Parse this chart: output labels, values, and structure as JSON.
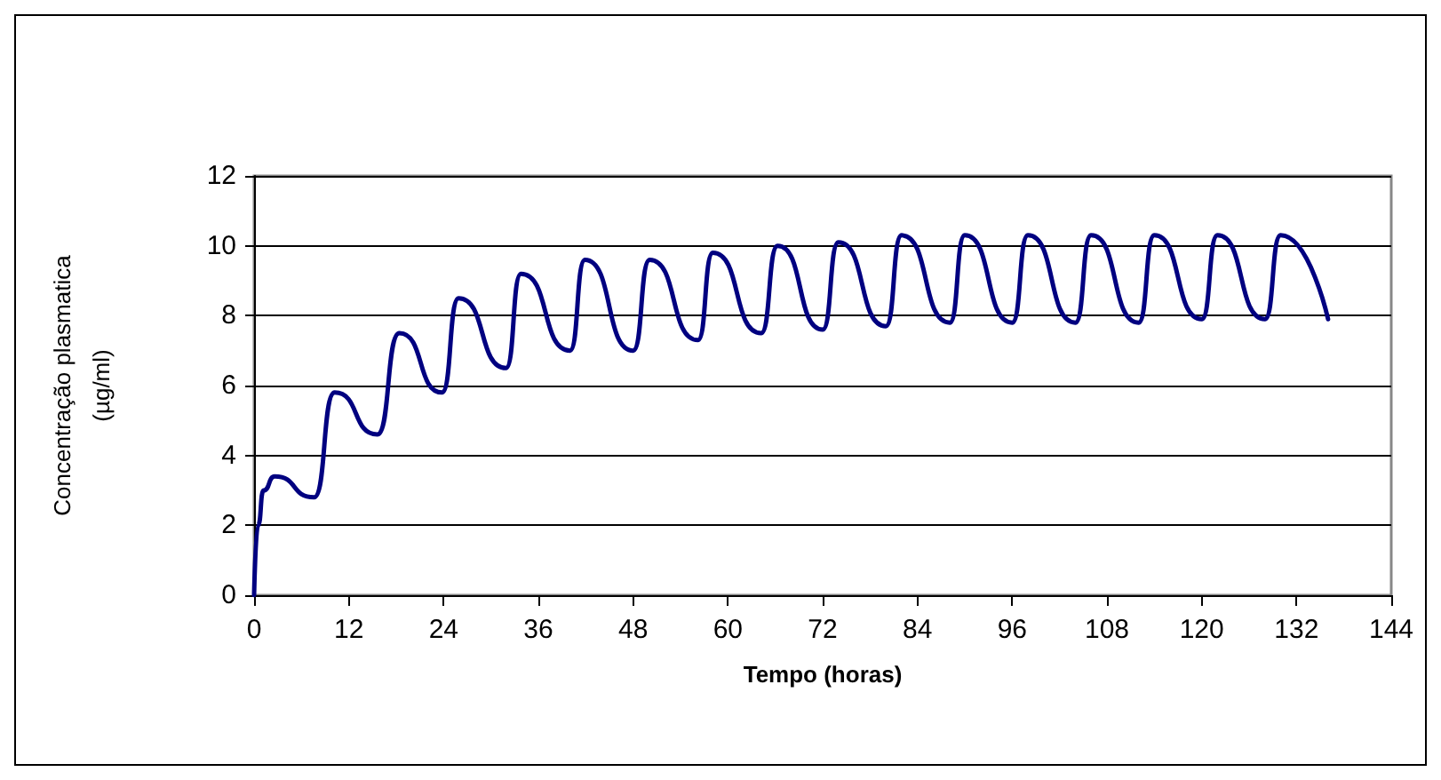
{
  "chart_data": {
    "type": "line",
    "xlabel": "Tempo (horas)",
    "ylabel": "Concentração plasmatica\n(µg/ml)",
    "xlim": [
      0,
      144
    ],
    "xticks": [
      0,
      12,
      24,
      36,
      48,
      60,
      72,
      84,
      96,
      108,
      120,
      132,
      144
    ],
    "ylim": [
      0,
      12
    ],
    "yticks": [
      0,
      2,
      4,
      6,
      8,
      10,
      12
    ],
    "grid": "y",
    "marker": "none",
    "line_style": "solid",
    "series": [
      {
        "color": "#000080",
        "x": [
          0,
          0.5,
          1.2,
          2.6,
          7.6,
          10.2,
          15.6,
          18.4,
          23.8,
          25.9,
          31.9,
          33.8,
          40.0,
          41.9,
          48.0,
          50.1,
          56.2,
          58.1,
          64.2,
          66.3,
          72,
          74,
          80,
          82,
          88.1,
          90,
          96,
          98,
          104,
          106,
          112,
          114,
          120,
          122,
          128,
          130,
          136
        ],
        "values": [
          0,
          2.0,
          3.0,
          3.4,
          2.8,
          5.8,
          4.6,
          7.5,
          5.8,
          8.5,
          6.5,
          9.2,
          7.0,
          9.6,
          7.0,
          9.6,
          7.3,
          9.8,
          7.5,
          10.0,
          7.6,
          10.1,
          7.7,
          10.3,
          7.8,
          10.3,
          7.8,
          10.3,
          7.8,
          10.3,
          7.8,
          10.3,
          7.9,
          10.3,
          7.9,
          10.3,
          7.9
        ]
      }
    ]
  }
}
